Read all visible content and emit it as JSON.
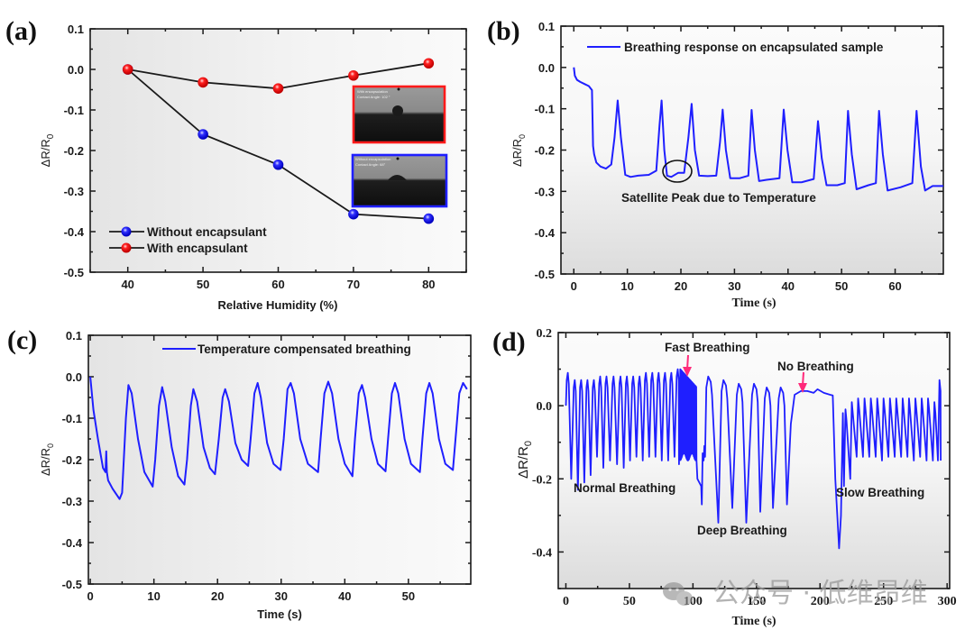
{
  "watermark": "公众号 · 低维昂维",
  "colors": {
    "series_blue": "#1f1fff",
    "series_red": "#ff1a1a",
    "line_black": "#1a1a1a",
    "arrow_pink": "#ff2a7a"
  },
  "chart_data": [
    {
      "panel": "(a)",
      "type": "line",
      "xlabel": "Relative Humidity (%)",
      "ylabel": "ΔR/R0",
      "ylabel_main": "ΔR/R",
      "ylabel_sub": "0",
      "xlim": [
        35,
        85
      ],
      "ylim": [
        -0.5,
        0.1
      ],
      "xticks": [
        40,
        50,
        60,
        70,
        80
      ],
      "xtick_labels": [
        "40",
        "50",
        "60",
        "70",
        "80"
      ],
      "yticks": [
        0.1,
        0.0,
        -0.1,
        -0.2,
        -0.3,
        -0.4,
        -0.5
      ],
      "ytick_labels": [
        "0.1",
        "0.0",
        "-0.1",
        "-0.2",
        "-0.3",
        "-0.4",
        "-0.5"
      ],
      "legend_position": "bottom-left",
      "series": [
        {
          "name": "Without encapsulant",
          "color": "#1f1fff",
          "x": [
            40,
            50,
            60,
            70,
            80
          ],
          "y": [
            0.0,
            -0.16,
            -0.235,
            -0.357,
            -0.368
          ]
        },
        {
          "name": "With encapsulant",
          "color": "#ff1a1a",
          "x": [
            40,
            50,
            60,
            70,
            80
          ],
          "y": [
            0.0,
            -0.032,
            -0.047,
            -0.015,
            0.015
          ]
        }
      ],
      "insets": [
        {
          "border_color": "#ff1a1a",
          "line1": "With encapsulation",
          "line2": "Contact Angle: 102 °"
        },
        {
          "border_color": "#1f1fff",
          "line1": "Without encapsulation",
          "line2": "Contact Angle: 68°"
        }
      ]
    },
    {
      "panel": "(b)",
      "type": "line",
      "xlabel": "Time (s)",
      "ylabel": "ΔR/R0",
      "ylabel_main": "ΔR/R",
      "ylabel_sub": "0",
      "xlim": [
        -2.4,
        69
      ],
      "ylim": [
        -0.5,
        0.1
      ],
      "xticks": [
        0,
        10,
        20,
        30,
        40,
        50,
        60
      ],
      "xtick_labels": [
        "0",
        "10",
        "20",
        "30",
        "40",
        "50",
        "60"
      ],
      "yticks": [
        0.1,
        0.0,
        -0.1,
        -0.2,
        -0.3,
        -0.4,
        -0.5
      ],
      "ytick_labels": [
        "0.1",
        "0.0",
        "-0.1",
        "-0.2",
        "-0.3",
        "-0.4",
        "-0.5"
      ],
      "legend_position": "top-right",
      "series": [
        {
          "name": "Breathing response on encapsulated sample",
          "color": "#1f1fff",
          "x": [
            0,
            0.2,
            0.6,
            1.2,
            2.0,
            2.8,
            3.4,
            3.6,
            3.8,
            4.2,
            5.0,
            6.0,
            7.0,
            7.6,
            8.2,
            8.8,
            9.6,
            10.6,
            12,
            14,
            15.4,
            16.0,
            16.4,
            16.9,
            17.4,
            18.2,
            19.5,
            20.6,
            21.4,
            22.0,
            22.6,
            23.4,
            25,
            26.6,
            27.3,
            27.8,
            28.4,
            29.2,
            31,
            32.6,
            33.2,
            33.8,
            34.6,
            36,
            38.4,
            39.2,
            39.9,
            40.8,
            42.5,
            44.8,
            45.6,
            46.3,
            47.2,
            49.2,
            50.6,
            51.2,
            51.9,
            52.8,
            55,
            56.4,
            57.0,
            57.7,
            58.6,
            61,
            63.2,
            64.0,
            64.8,
            65.6,
            67,
            69
          ],
          "y": [
            0,
            -0.02,
            -0.03,
            -0.035,
            -0.04,
            -0.045,
            -0.055,
            -0.19,
            -0.21,
            -0.23,
            -0.24,
            -0.245,
            -0.235,
            -0.17,
            -0.08,
            -0.17,
            -0.26,
            -0.265,
            -0.262,
            -0.26,
            -0.25,
            -0.14,
            -0.08,
            -0.2,
            -0.262,
            -0.265,
            -0.255,
            -0.255,
            -0.17,
            -0.088,
            -0.2,
            -0.262,
            -0.263,
            -0.262,
            -0.18,
            -0.102,
            -0.2,
            -0.268,
            -0.268,
            -0.262,
            -0.103,
            -0.2,
            -0.275,
            -0.272,
            -0.268,
            -0.102,
            -0.2,
            -0.278,
            -0.278,
            -0.27,
            -0.13,
            -0.22,
            -0.285,
            -0.285,
            -0.28,
            -0.105,
            -0.21,
            -0.295,
            -0.285,
            -0.28,
            -0.105,
            -0.21,
            -0.298,
            -0.29,
            -0.28,
            -0.105,
            -0.24,
            -0.298,
            -0.287,
            -0.287
          ]
        }
      ],
      "annotations": [
        {
          "text": "Satellite Peak due to Temperature",
          "x": 19,
          "y": -0.26
        }
      ]
    },
    {
      "panel": "(c)",
      "type": "line",
      "xlabel": "Time (s)",
      "ylabel": "ΔR/R0",
      "ylabel_main": "ΔR/R",
      "ylabel_sub": "0",
      "xlim": [
        -0.3,
        59.8
      ],
      "ylim": [
        -0.5,
        0.1
      ],
      "xticks": [
        0,
        10,
        20,
        30,
        40,
        50
      ],
      "xtick_labels": [
        "0",
        "10",
        "20",
        "30",
        "40",
        "50"
      ],
      "yticks": [
        0.1,
        0.0,
        -0.1,
        -0.2,
        -0.3,
        -0.4,
        -0.5
      ],
      "ytick_labels": [
        "0.1",
        "0.0",
        "-0.1",
        "-0.2",
        "-0.3",
        "-0.4",
        "-0.5"
      ],
      "legend_position": "top-right",
      "series": [
        {
          "name": "Temperature compensated breathing",
          "color": "#1f1fff",
          "x": [
            0,
            0.5,
            1.2,
            2.0,
            2.4,
            2.5,
            2.6,
            2.8,
            3.5,
            4.6,
            5.0,
            5.6,
            6.0,
            6.5,
            7.5,
            8.5,
            9.8,
            10.2,
            10.8,
            11.3,
            11.8,
            12.8,
            13.8,
            14.8,
            15.2,
            15.8,
            16.2,
            16.8,
            17.8,
            18.8,
            19.6,
            20.2,
            20.8,
            21.2,
            21.8,
            22.8,
            23.8,
            24.8,
            25.2,
            25.8,
            26.3,
            26.8,
            27.8,
            28.8,
            29.9,
            30.4,
            31.0,
            31.5,
            32.0,
            33.0,
            34.2,
            35.8,
            36.2,
            36.8,
            37.4,
            38.0,
            39.0,
            40.0,
            41.2,
            41.6,
            42.2,
            42.7,
            43.2,
            44.2,
            45.2,
            46.4,
            46.8,
            47.4,
            47.9,
            48.4,
            49.4,
            50.4,
            51.8,
            52.2,
            52.8,
            53.3,
            53.8,
            54.8,
            55.8,
            57.0,
            57.4,
            58.0,
            58.6,
            59.2
          ],
          "y": [
            0,
            -0.08,
            -0.15,
            -0.22,
            -0.23,
            -0.18,
            -0.23,
            -0.25,
            -0.27,
            -0.295,
            -0.28,
            -0.1,
            -0.02,
            -0.04,
            -0.15,
            -0.23,
            -0.265,
            -0.2,
            -0.07,
            -0.025,
            -0.06,
            -0.17,
            -0.24,
            -0.26,
            -0.2,
            -0.07,
            -0.03,
            -0.06,
            -0.17,
            -0.22,
            -0.235,
            -0.15,
            -0.05,
            -0.03,
            -0.06,
            -0.16,
            -0.2,
            -0.215,
            -0.15,
            -0.04,
            -0.015,
            -0.05,
            -0.16,
            -0.21,
            -0.225,
            -0.15,
            -0.03,
            -0.015,
            -0.04,
            -0.15,
            -0.21,
            -0.23,
            -0.15,
            -0.04,
            -0.012,
            -0.04,
            -0.15,
            -0.21,
            -0.24,
            -0.15,
            -0.04,
            -0.02,
            -0.05,
            -0.15,
            -0.21,
            -0.228,
            -0.15,
            -0.04,
            -0.015,
            -0.04,
            -0.15,
            -0.21,
            -0.23,
            -0.15,
            -0.04,
            -0.015,
            -0.04,
            -0.15,
            -0.21,
            -0.225,
            -0.15,
            -0.04,
            -0.015,
            -0.03
          ]
        }
      ]
    },
    {
      "panel": "(d)",
      "type": "line",
      "xlabel": "Time (s)",
      "ylabel": "ΔR/R0",
      "ylabel_main": "ΔR/R",
      "ylabel_sub": "0",
      "xlim": [
        -6,
        302
      ],
      "ylim": [
        -0.5,
        0.2
      ],
      "xticks": [
        0,
        50,
        100,
        150,
        200,
        250,
        300
      ],
      "xtick_labels": [
        "0",
        "50",
        "100",
        "150",
        "200",
        "250",
        "300"
      ],
      "yticks": [
        0.2,
        0.0,
        -0.2,
        -0.4
      ],
      "ytick_labels": [
        "0.2",
        "0.0",
        "-0.2",
        "-0.4"
      ],
      "minor_yticks": [
        0.1,
        -0.1,
        -0.3,
        -0.5
      ],
      "segments": [
        {
          "name": "Normal Breathing",
          "start": 0,
          "peaks_t": [
            1.5,
            7,
            12,
            17,
            22,
            27,
            32,
            37.5,
            43,
            48,
            53,
            58,
            63,
            68,
            73,
            78,
            83,
            88
          ],
          "peaks_y": [
            0.09,
            0.07,
            0.07,
            0.07,
            0.07,
            0.08,
            0.08,
            0.08,
            0.08,
            0.08,
            0.08,
            0.08,
            0.09,
            0.09,
            0.09,
            0.09,
            0.09,
            0.1
          ],
          "troughs_y": [
            -0.2,
            -0.23,
            -0.21,
            -0.19,
            -0.14,
            -0.17,
            -0.15,
            -0.16,
            -0.17,
            -0.15,
            -0.14,
            -0.15,
            -0.14,
            -0.14,
            -0.15,
            -0.15,
            -0.14,
            -0.16
          ]
        },
        {
          "name": "Fast Breathing",
          "start": 90,
          "end": 103,
          "top_start": 0.1,
          "top_end": 0.05,
          "bottom": -0.14
        },
        {
          "name": "Deep Breathing",
          "peaks_t": [
            112,
            124,
            136,
            148,
            158,
            169
          ],
          "peaks_y": [
            0.08,
            0.07,
            0.06,
            0.06,
            0.05,
            0.05
          ],
          "troughs_t": [
            107,
            120,
            131,
            142,
            153,
            163,
            174
          ],
          "troughs_y": [
            -0.27,
            -0.32,
            -0.28,
            -0.32,
            -0.29,
            -0.28,
            -0.27
          ]
        },
        {
          "name": "No Breathing",
          "start": 180,
          "end": 210,
          "level": 0.04
        },
        {
          "name": "Slow Breathing",
          "dip_t": 216,
          "dip_y": -0.39,
          "peaks_t": [
            220,
            225,
            230,
            235,
            240,
            245,
            250,
            255,
            260,
            265,
            270,
            275,
            280,
            285,
            290,
            294
          ],
          "peaks_y": [
            -0.01,
            0.01,
            0.02,
            0.02,
            0.02,
            0.02,
            0.02,
            0.02,
            0.02,
            0.02,
            0.02,
            0.02,
            0.02,
            0.02,
            0.01,
            0.07
          ],
          "troughs_y": [
            -0.22,
            -0.2,
            -0.14,
            -0.14,
            -0.14,
            -0.14,
            -0.15,
            -0.14,
            -0.14,
            -0.14,
            -0.14,
            -0.15,
            -0.14,
            -0.15,
            -0.15,
            -0.15
          ]
        }
      ],
      "annotations": [
        {
          "text": "Fast Breathing",
          "x": 91,
          "y": 0.09,
          "arrow": true
        },
        {
          "text": "No Breathing",
          "x": 196,
          "y": 0.035,
          "arrow": true
        },
        {
          "text": "Normal Breathing",
          "x": 5,
          "y": -0.23
        },
        {
          "text": "Deep Breathing",
          "x": 108,
          "y": -0.34
        },
        {
          "text": "Slow Breathing",
          "x": 224,
          "y": -0.24
        }
      ]
    }
  ]
}
